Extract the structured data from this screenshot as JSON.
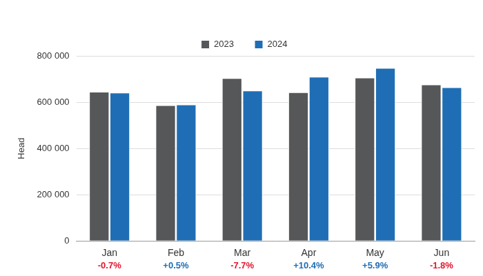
{
  "chart_data": {
    "type": "bar",
    "categories": [
      "Jan",
      "Feb",
      "Mar",
      "Apr",
      "May",
      "Jun"
    ],
    "series": [
      {
        "name": "2023",
        "color": "#555759",
        "values": [
          645000,
          587000,
          704000,
          643000,
          706000,
          676000
        ]
      },
      {
        "name": "2024",
        "color": "#1f6eb5",
        "values": [
          641000,
          590000,
          650000,
          710000,
          748000,
          664000
        ]
      }
    ],
    "y_label": "Head",
    "ylim": [
      0,
      800000
    ],
    "yticks": [
      0,
      {
        "value": 200000,
        "label": "200 000"
      },
      {
        "value": 400000,
        "label": "400 000"
      },
      {
        "value": 600000,
        "label": "600 000"
      },
      {
        "value": 800000,
        "label": "800 000"
      }
    ],
    "grid": true,
    "legend": "top",
    "annotations": [
      {
        "value": -0.7,
        "label": "-0.7%"
      },
      {
        "value": 0.5,
        "label": "+0.5%"
      },
      {
        "value": -7.7,
        "label": "-7.7%"
      },
      {
        "value": 10.4,
        "label": "+10.4%"
      },
      {
        "value": 5.9,
        "label": "+5.9%"
      },
      {
        "value": -1.8,
        "label": "-1.8%"
      }
    ]
  }
}
